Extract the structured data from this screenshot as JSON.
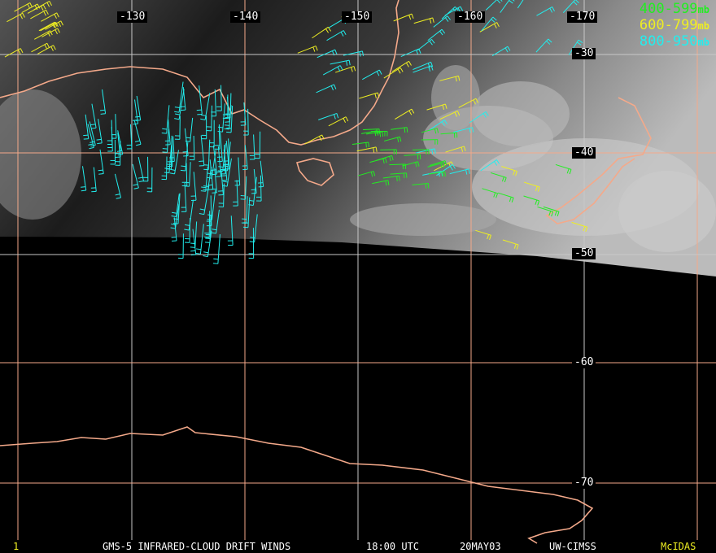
{
  "map": {
    "longitude_labels": [
      "-130",
      "-140",
      "-150",
      "-160",
      "-170"
    ],
    "latitude_labels": [
      "-30",
      "-40",
      "-50",
      "-60",
      "-70"
    ],
    "colors": {
      "coastline": "#f4a98a",
      "grid": "#f4a98a",
      "grid_alt": "#c8c8c8",
      "background": "#000000"
    }
  },
  "legend": [
    {
      "range": "400-599",
      "unit": "mb",
      "color": "#22ee22"
    },
    {
      "range": "600-799",
      "unit": "mb",
      "color": "#eeee22"
    },
    {
      "range": "800-950",
      "unit": "mb",
      "color": "#22eeee"
    }
  ],
  "footer": {
    "frame": "1",
    "title": "GMS-5 INFRARED-CLOUD DRIFT WINDS",
    "time": "18:00 UTC",
    "date": "20MAY03",
    "source": "UW-CIMSS",
    "software": "McIDAS"
  }
}
